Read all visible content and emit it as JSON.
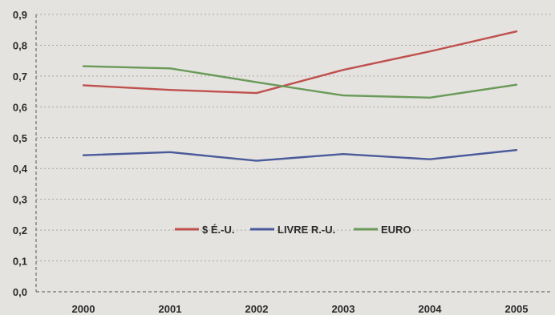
{
  "chart_data": {
    "type": "line",
    "categories": [
      "2000",
      "2001",
      "2002",
      "2003",
      "2004",
      "2005"
    ],
    "yticks": [
      "0,0",
      "0,1",
      "0,2",
      "0,3",
      "0,4",
      "0,5",
      "0,6",
      "0,7",
      "0,8",
      "0,9"
    ],
    "ylim": [
      0,
      0.9
    ],
    "grid": true,
    "legend_position": "center",
    "series": [
      {
        "name": "$ É.-U.",
        "color": "#c0504d",
        "values": [
          0.67,
          0.655,
          0.645,
          0.72,
          0.78,
          0.845
        ]
      },
      {
        "name": "LIVRE R.-U.",
        "color": "#4a5a9a",
        "values": [
          0.443,
          0.453,
          0.425,
          0.447,
          0.43,
          0.46
        ]
      },
      {
        "name": "EURO",
        "color": "#6a9a58",
        "values": [
          0.732,
          0.725,
          0.68,
          0.637,
          0.63,
          0.672
        ]
      }
    ]
  }
}
